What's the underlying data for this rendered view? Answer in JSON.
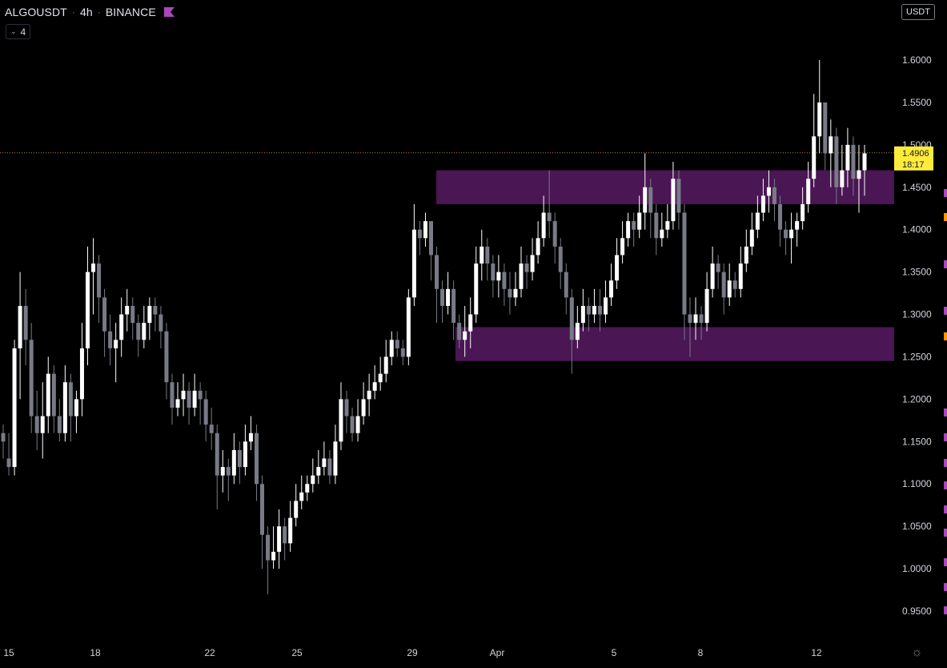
{
  "header": {
    "symbol": "ALGOUSDT",
    "interval": "4h",
    "exchange": "BINANCE",
    "separator": "·",
    "flag_color": "#ab47bc",
    "indicator_count": "4",
    "currency": "USDT"
  },
  "price_axis": {
    "labels": [
      "1.6000",
      "1.5500",
      "1.5000",
      "1.4500",
      "1.4000",
      "1.3500",
      "1.3000",
      "1.2500",
      "1.2000",
      "1.1500",
      "1.1000",
      "1.0500",
      "1.0000",
      "0.9500"
    ]
  },
  "time_axis": {
    "labels": [
      "15",
      "18",
      "22",
      "25",
      "29",
      "Apr",
      "5",
      "8",
      "12"
    ]
  },
  "current_price": {
    "value": "1.4906",
    "countdown": "18:17",
    "color": "#ffeb3b"
  },
  "zones": [
    {
      "name": "resistance-zone",
      "low": 1.43,
      "high": 1.47,
      "color": "#4a1654"
    },
    {
      "name": "support-zone",
      "low": 1.245,
      "high": 1.285,
      "color": "#4a1654"
    }
  ],
  "colors": {
    "background": "#000000",
    "candle_up": "#ffffff",
    "candle_down": "#787b86",
    "axis_text": "#d1d4dc",
    "marker_purple": "#ab47bc",
    "marker_orange": "#ff9800"
  },
  "icons": {
    "settings": "gear-icon",
    "indicators_toggle": "chevron-down-icon"
  },
  "chart_data": {
    "type": "candlestick",
    "ylim": [
      0.92,
      1.65
    ],
    "series": [
      {
        "name": "ALGOUSDT",
        "candles": [
          [
            1.16,
            1.15,
            1.17,
            1.13
          ],
          [
            1.13,
            1.12,
            1.16,
            1.11
          ],
          [
            1.12,
            1.26,
            1.27,
            1.11
          ],
          [
            1.26,
            1.31,
            1.35,
            1.2
          ],
          [
            1.31,
            1.27,
            1.33,
            1.24
          ],
          [
            1.27,
            1.18,
            1.29,
            1.16
          ],
          [
            1.18,
            1.16,
            1.21,
            1.14
          ],
          [
            1.16,
            1.18,
            1.22,
            1.13
          ],
          [
            1.18,
            1.23,
            1.25,
            1.16
          ],
          [
            1.23,
            1.18,
            1.24,
            1.16
          ],
          [
            1.18,
            1.16,
            1.2,
            1.15
          ],
          [
            1.16,
            1.22,
            1.24,
            1.15
          ],
          [
            1.22,
            1.18,
            1.23,
            1.15
          ],
          [
            1.18,
            1.2,
            1.21,
            1.16
          ],
          [
            1.2,
            1.26,
            1.29,
            1.18
          ],
          [
            1.26,
            1.35,
            1.38,
            1.24
          ],
          [
            1.35,
            1.36,
            1.39,
            1.3
          ],
          [
            1.36,
            1.32,
            1.37,
            1.29
          ],
          [
            1.32,
            1.28,
            1.33,
            1.25
          ],
          [
            1.28,
            1.26,
            1.3,
            1.24
          ],
          [
            1.26,
            1.27,
            1.29,
            1.22
          ],
          [
            1.27,
            1.3,
            1.32,
            1.25
          ],
          [
            1.3,
            1.31,
            1.33,
            1.28
          ],
          [
            1.31,
            1.29,
            1.32,
            1.27
          ],
          [
            1.29,
            1.27,
            1.3,
            1.25
          ],
          [
            1.27,
            1.29,
            1.31,
            1.26
          ],
          [
            1.29,
            1.31,
            1.32,
            1.27
          ],
          [
            1.31,
            1.3,
            1.32,
            1.28
          ],
          [
            1.3,
            1.28,
            1.31,
            1.26
          ],
          [
            1.28,
            1.22,
            1.29,
            1.2
          ],
          [
            1.22,
            1.19,
            1.23,
            1.17
          ],
          [
            1.19,
            1.2,
            1.22,
            1.18
          ],
          [
            1.2,
            1.21,
            1.23,
            1.18
          ],
          [
            1.21,
            1.19,
            1.22,
            1.17
          ],
          [
            1.19,
            1.21,
            1.23,
            1.18
          ],
          [
            1.21,
            1.2,
            1.22,
            1.17
          ],
          [
            1.2,
            1.17,
            1.21,
            1.15
          ],
          [
            1.17,
            1.16,
            1.19,
            1.14
          ],
          [
            1.16,
            1.11,
            1.17,
            1.07
          ],
          [
            1.11,
            1.12,
            1.14,
            1.09
          ],
          [
            1.12,
            1.11,
            1.13,
            1.08
          ],
          [
            1.11,
            1.14,
            1.16,
            1.1
          ],
          [
            1.14,
            1.12,
            1.15,
            1.1
          ],
          [
            1.12,
            1.15,
            1.17,
            1.11
          ],
          [
            1.15,
            1.16,
            1.18,
            1.14
          ],
          [
            1.16,
            1.1,
            1.17,
            1.08
          ],
          [
            1.1,
            1.04,
            1.11,
            1.0
          ],
          [
            1.04,
            1.01,
            1.05,
            0.97
          ],
          [
            1.01,
            1.02,
            1.05,
            1.0
          ],
          [
            1.02,
            1.05,
            1.07,
            1.0
          ],
          [
            1.05,
            1.03,
            1.06,
            1.01
          ],
          [
            1.03,
            1.06,
            1.08,
            1.02
          ],
          [
            1.06,
            1.08,
            1.1,
            1.05
          ],
          [
            1.08,
            1.09,
            1.11,
            1.07
          ],
          [
            1.09,
            1.1,
            1.11,
            1.08
          ],
          [
            1.1,
            1.11,
            1.13,
            1.09
          ],
          [
            1.11,
            1.12,
            1.14,
            1.1
          ],
          [
            1.12,
            1.13,
            1.15,
            1.11
          ],
          [
            1.13,
            1.11,
            1.14,
            1.1
          ],
          [
            1.11,
            1.15,
            1.17,
            1.1
          ],
          [
            1.15,
            1.2,
            1.22,
            1.14
          ],
          [
            1.2,
            1.18,
            1.21,
            1.16
          ],
          [
            1.18,
            1.16,
            1.19,
            1.15
          ],
          [
            1.16,
            1.18,
            1.2,
            1.15
          ],
          [
            1.18,
            1.2,
            1.22,
            1.17
          ],
          [
            1.2,
            1.21,
            1.23,
            1.18
          ],
          [
            1.21,
            1.22,
            1.24,
            1.2
          ],
          [
            1.22,
            1.23,
            1.25,
            1.21
          ],
          [
            1.23,
            1.25,
            1.27,
            1.22
          ],
          [
            1.25,
            1.27,
            1.28,
            1.24
          ],
          [
            1.27,
            1.26,
            1.28,
            1.25
          ],
          [
            1.26,
            1.25,
            1.27,
            1.24
          ],
          [
            1.25,
            1.32,
            1.33,
            1.24
          ],
          [
            1.32,
            1.4,
            1.43,
            1.31
          ],
          [
            1.4,
            1.39,
            1.41,
            1.37
          ],
          [
            1.39,
            1.41,
            1.42,
            1.38
          ],
          [
            1.41,
            1.37,
            1.41,
            1.34
          ],
          [
            1.37,
            1.33,
            1.38,
            1.29
          ],
          [
            1.33,
            1.31,
            1.34,
            1.29
          ],
          [
            1.31,
            1.33,
            1.35,
            1.3
          ],
          [
            1.33,
            1.29,
            1.34,
            1.27
          ],
          [
            1.29,
            1.27,
            1.3,
            1.26
          ],
          [
            1.27,
            1.28,
            1.31,
            1.25
          ],
          [
            1.28,
            1.3,
            1.32,
            1.26
          ],
          [
            1.3,
            1.36,
            1.38,
            1.29
          ],
          [
            1.36,
            1.38,
            1.4,
            1.34
          ],
          [
            1.38,
            1.36,
            1.39,
            1.34
          ],
          [
            1.36,
            1.34,
            1.37,
            1.32
          ],
          [
            1.34,
            1.35,
            1.37,
            1.32
          ],
          [
            1.35,
            1.33,
            1.36,
            1.31
          ],
          [
            1.33,
            1.32,
            1.35,
            1.3
          ],
          [
            1.32,
            1.33,
            1.35,
            1.31
          ],
          [
            1.33,
            1.36,
            1.38,
            1.32
          ],
          [
            1.36,
            1.35,
            1.37,
            1.33
          ],
          [
            1.35,
            1.37,
            1.39,
            1.34
          ],
          [
            1.37,
            1.39,
            1.41,
            1.36
          ],
          [
            1.39,
            1.42,
            1.44,
            1.38
          ],
          [
            1.42,
            1.41,
            1.47,
            1.39
          ],
          [
            1.41,
            1.38,
            1.42,
            1.36
          ],
          [
            1.38,
            1.35,
            1.39,
            1.33
          ],
          [
            1.35,
            1.32,
            1.36,
            1.3
          ],
          [
            1.32,
            1.27,
            1.33,
            1.23
          ],
          [
            1.27,
            1.29,
            1.31,
            1.26
          ],
          [
            1.29,
            1.31,
            1.33,
            1.28
          ],
          [
            1.31,
            1.3,
            1.32,
            1.28
          ],
          [
            1.3,
            1.31,
            1.33,
            1.29
          ],
          [
            1.31,
            1.3,
            1.33,
            1.28
          ],
          [
            1.3,
            1.32,
            1.34,
            1.29
          ],
          [
            1.32,
            1.34,
            1.36,
            1.31
          ],
          [
            1.34,
            1.37,
            1.39,
            1.33
          ],
          [
            1.37,
            1.39,
            1.41,
            1.36
          ],
          [
            1.39,
            1.41,
            1.42,
            1.38
          ],
          [
            1.41,
            1.4,
            1.42,
            1.38
          ],
          [
            1.4,
            1.42,
            1.44,
            1.39
          ],
          [
            1.42,
            1.45,
            1.49,
            1.4
          ],
          [
            1.45,
            1.42,
            1.46,
            1.39
          ],
          [
            1.42,
            1.39,
            1.43,
            1.37
          ],
          [
            1.39,
            1.4,
            1.42,
            1.38
          ],
          [
            1.4,
            1.41,
            1.43,
            1.39
          ],
          [
            1.41,
            1.46,
            1.48,
            1.4
          ],
          [
            1.46,
            1.42,
            1.47,
            1.4
          ],
          [
            1.42,
            1.3,
            1.43,
            1.27
          ],
          [
            1.3,
            1.29,
            1.32,
            1.25
          ],
          [
            1.29,
            1.3,
            1.32,
            1.27
          ],
          [
            1.3,
            1.29,
            1.31,
            1.27
          ],
          [
            1.29,
            1.33,
            1.35,
            1.28
          ],
          [
            1.33,
            1.36,
            1.38,
            1.32
          ],
          [
            1.36,
            1.35,
            1.37,
            1.33
          ],
          [
            1.35,
            1.32,
            1.36,
            1.3
          ],
          [
            1.32,
            1.34,
            1.36,
            1.31
          ],
          [
            1.34,
            1.33,
            1.35,
            1.32
          ],
          [
            1.33,
            1.36,
            1.38,
            1.32
          ],
          [
            1.36,
            1.38,
            1.4,
            1.35
          ],
          [
            1.38,
            1.4,
            1.42,
            1.37
          ],
          [
            1.4,
            1.42,
            1.44,
            1.39
          ],
          [
            1.42,
            1.44,
            1.46,
            1.41
          ],
          [
            1.44,
            1.45,
            1.47,
            1.42
          ],
          [
            1.45,
            1.43,
            1.46,
            1.41
          ],
          [
            1.43,
            1.4,
            1.44,
            1.38
          ],
          [
            1.4,
            1.39,
            1.41,
            1.37
          ],
          [
            1.39,
            1.4,
            1.42,
            1.36
          ],
          [
            1.4,
            1.41,
            1.42,
            1.38
          ],
          [
            1.41,
            1.43,
            1.45,
            1.4
          ],
          [
            1.43,
            1.46,
            1.48,
            1.42
          ],
          [
            1.46,
            1.51,
            1.56,
            1.45
          ],
          [
            1.51,
            1.55,
            1.6,
            1.49
          ],
          [
            1.55,
            1.49,
            1.55,
            1.47
          ],
          [
            1.49,
            1.51,
            1.53,
            1.45
          ],
          [
            1.51,
            1.45,
            1.52,
            1.43
          ],
          [
            1.45,
            1.47,
            1.5,
            1.44
          ],
          [
            1.47,
            1.5,
            1.52,
            1.45
          ],
          [
            1.5,
            1.46,
            1.51,
            1.44
          ],
          [
            1.46,
            1.47,
            1.5,
            1.42
          ],
          [
            1.47,
            1.49,
            1.5,
            1.44
          ]
        ]
      }
    ]
  }
}
